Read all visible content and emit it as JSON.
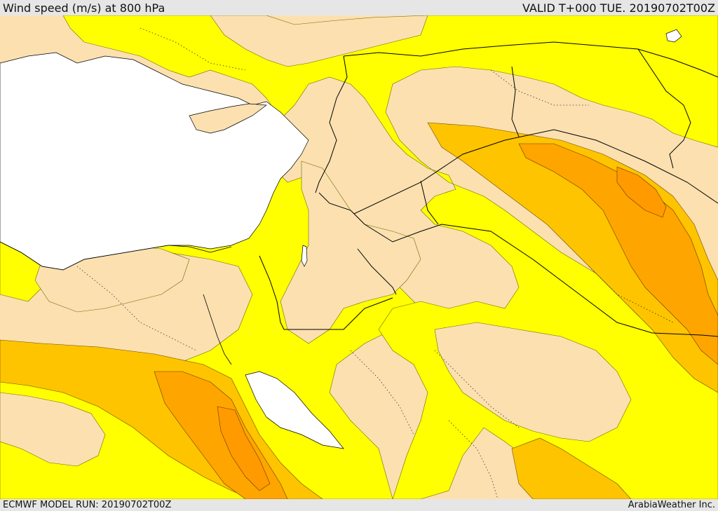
{
  "header": {
    "title": "Wind speed (m/s) at 800 hPa",
    "valid": "VALID T+000 TUE. 20190702T00Z"
  },
  "footer": {
    "model_run": "ECMWF MODEL RUN: 20190702T00Z",
    "credit": "ArabiaWeather Inc."
  },
  "colors": {
    "land_calm": "#fce0b0",
    "sea": "#ffffff",
    "band_yellow": "#ffff00",
    "band_amber": "#ffc400",
    "band_orange": "#ffa500",
    "border": "#000000"
  }
}
